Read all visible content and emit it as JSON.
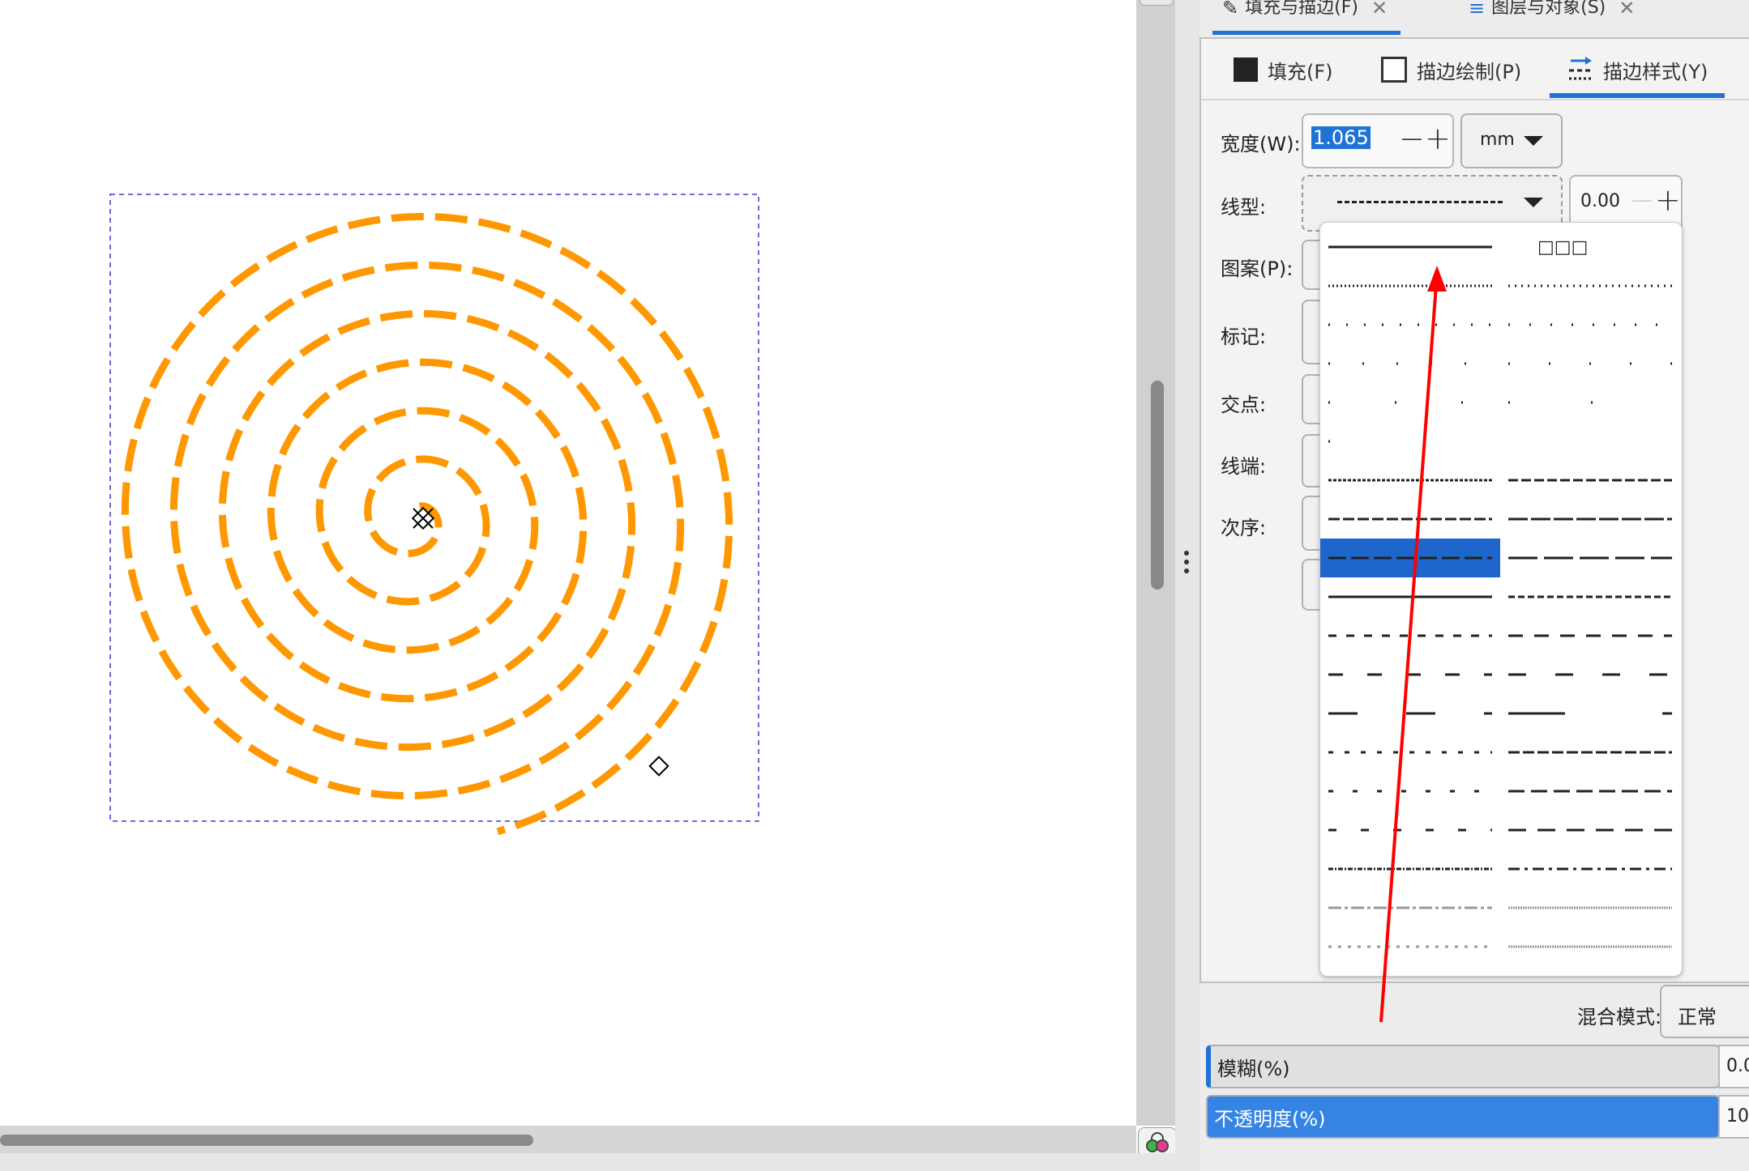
{
  "tabs_top": [
    {
      "label": "填充与描边(F)",
      "icon": "pen-icon",
      "close": "✕"
    },
    {
      "label": "图层与对象(S)",
      "icon": "layers-icon",
      "close": "✕"
    }
  ],
  "subtabs": [
    {
      "label": "填充(F)",
      "icon": "filled-square-icon"
    },
    {
      "label": "描边绘制(P)",
      "icon": "outline-square-icon"
    },
    {
      "label": "描边样式(Y)",
      "icon": "stroke-style-icon"
    }
  ],
  "stroke_style": {
    "width_label": "宽度(W):",
    "width_value": "1.065",
    "unit": "mm",
    "dash_label": "线型:",
    "dash_offset": "0.00",
    "pattern_label": "图案(P):",
    "markers_label": "标记:",
    "join_label": "交点:",
    "cap_label": "线端:",
    "order_label": "次序:"
  },
  "dropdown": {
    "first_right_label": "□□□",
    "selected_index": 8
  },
  "blend": {
    "label": "混合模式:",
    "value": "正常"
  },
  "blur": {
    "label": "模糊(%)",
    "value": "0.0"
  },
  "opacity": {
    "label": "不透明度(%)",
    "value": "10"
  },
  "colors": {
    "spiral": "#ff9800",
    "accent": "#1f72d6",
    "annotation_arrow": "#ff0000"
  }
}
